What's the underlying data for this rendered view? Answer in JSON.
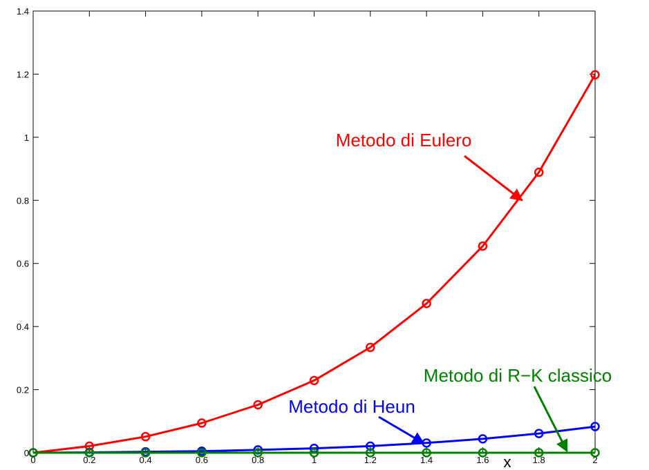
{
  "chart_data": {
    "type": "line",
    "xlabel": "x",
    "xlim": [
      0,
      2
    ],
    "ylim": [
      0,
      1.4
    ],
    "x_ticks": [
      0,
      0.2,
      0.4,
      0.6,
      0.8,
      1,
      1.2,
      1.4,
      1.6,
      1.8,
      2
    ],
    "x_tick_labels": [
      "0",
      "0.2",
      "0.4",
      "0.6",
      "0.8",
      "1",
      "1.2",
      "1.4",
      "1.6",
      "1.8",
      "2"
    ],
    "y_ticks": [
      0,
      0.2,
      0.4,
      0.6,
      0.8,
      1,
      1.2,
      1.4
    ],
    "y_tick_labels": [
      "0",
      "0.2",
      "0.4",
      "0.6",
      "0.8",
      "1",
      "1.2",
      "1.4"
    ],
    "grid": false,
    "x": [
      0,
      0.2,
      0.4,
      0.6,
      0.8,
      1.0,
      1.2,
      1.4,
      1.6,
      1.8,
      2.0
    ],
    "series": [
      {
        "key": "euler",
        "color": "#ff0000",
        "marker": "circle",
        "values": [
          0,
          0.021,
          0.051,
          0.094,
          0.152,
          0.229,
          0.334,
          0.473,
          0.655,
          0.889,
          1.198
        ]
      },
      {
        "key": "heun",
        "color": "#0000ff",
        "marker": "circle",
        "values": [
          0,
          0.001,
          0.003,
          0.005,
          0.009,
          0.014,
          0.021,
          0.031,
          0.044,
          0.061,
          0.083
        ]
      },
      {
        "key": "rk",
        "color": "#008000",
        "marker": "circle",
        "values": [
          0,
          0,
          0,
          0,
          0,
          0,
          0,
          0,
          0,
          0,
          0
        ]
      }
    ],
    "annotations": [
      {
        "text": "Metodo di Eulero",
        "color": "#ff0000",
        "tip": [
          1.74,
          0.8
        ]
      },
      {
        "text": "Metodo di Heun",
        "color": "#0000ff",
        "tip": [
          1.39,
          0.03
        ]
      },
      {
        "text": "Metodo di R−K classico",
        "color": "#008000",
        "tip": [
          1.9,
          0.005
        ]
      }
    ]
  }
}
